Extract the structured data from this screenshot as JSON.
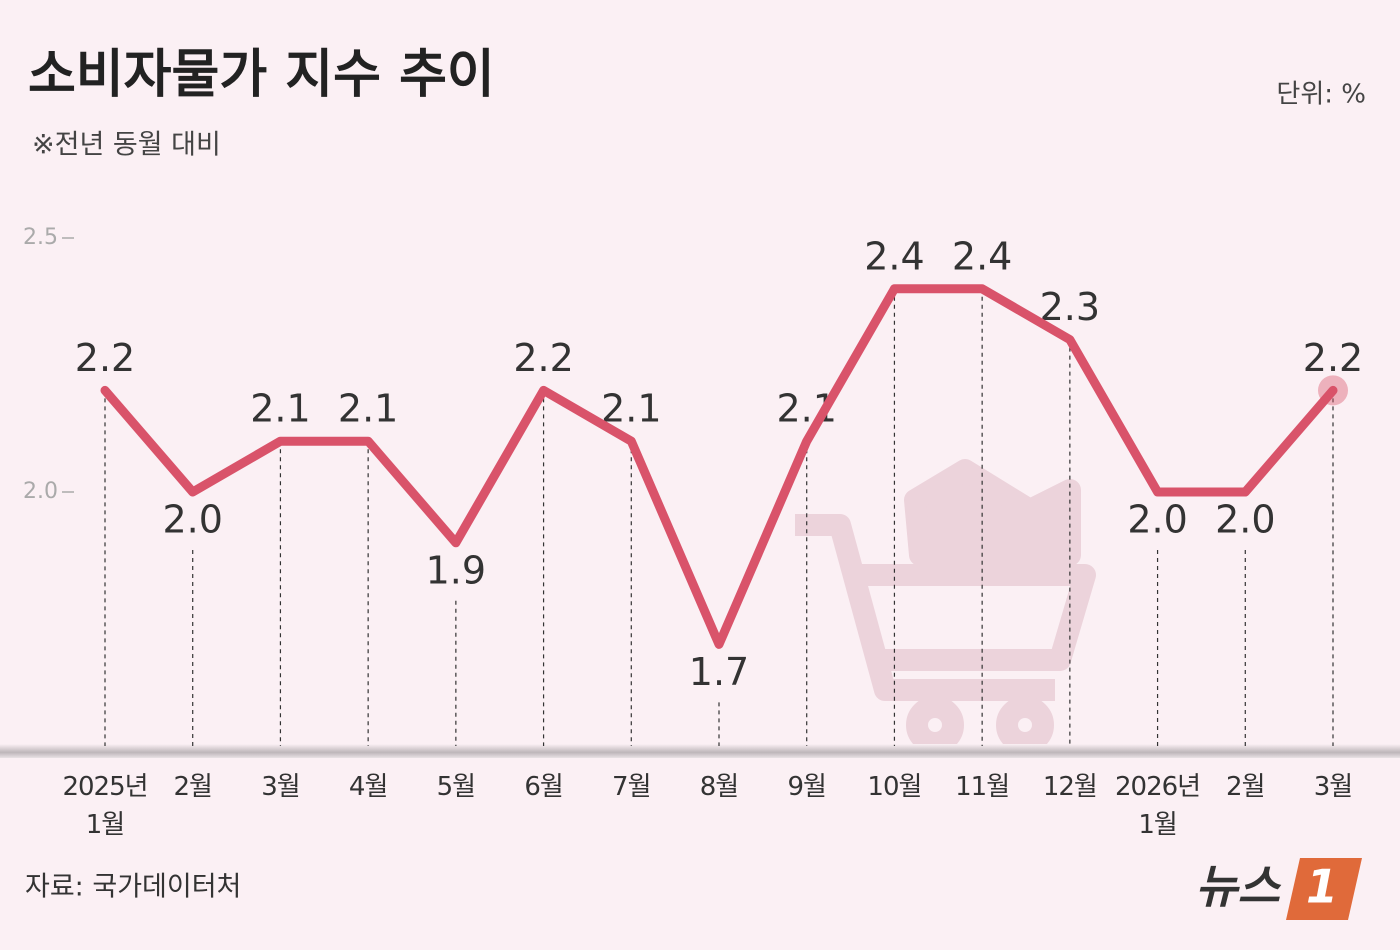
{
  "chart_data": {
    "type": "line",
    "title": "소비자물가 지수 추이",
    "subtitle": "※전년 동월 대비",
    "unit_label": "단위: %",
    "source": "자료: 국가데이터처",
    "logo_text": "뉴스",
    "logo_mark": "1",
    "categories": [
      "2025년 1월",
      "2월",
      "3월",
      "4월",
      "5월",
      "6월",
      "7월",
      "8월",
      "9월",
      "10월",
      "11월",
      "12월",
      "2026년 1월",
      "2월",
      "3월"
    ],
    "series": [
      {
        "name": "소비자물가 지수",
        "color": "#d9536a",
        "values": [
          2.2,
          2.0,
          2.1,
          2.1,
          1.9,
          2.2,
          2.1,
          1.7,
          2.1,
          2.4,
          2.4,
          2.3,
          2.0,
          2.0,
          2.2
        ],
        "value_labels": [
          "2.2",
          "2.0",
          "2.1",
          "2.1",
          "1.9",
          "2.2",
          "2.1",
          "1.7",
          "2.1",
          "2.4",
          "2.4",
          "2.3",
          "2.0",
          "2.0",
          "2.2"
        ]
      }
    ],
    "ylim": [
      1.5,
      2.5
    ],
    "yticks": [
      {
        "value": 2,
        "label": "2.0"
      },
      2.5
    ]
  }
}
